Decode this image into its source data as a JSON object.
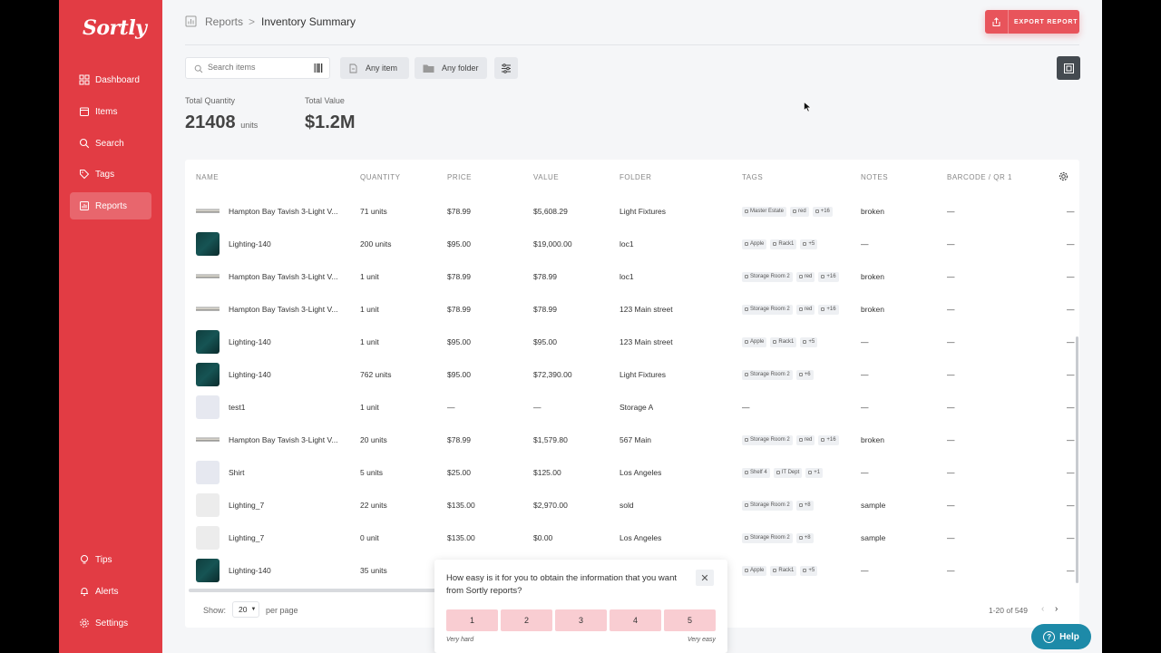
{
  "sidebar": {
    "logo": "Sortly",
    "items": [
      {
        "label": "Dashboard",
        "icon": "grid-icon"
      },
      {
        "label": "Items",
        "icon": "box-icon"
      },
      {
        "label": "Search",
        "icon": "search-icon"
      },
      {
        "label": "Tags",
        "icon": "tag-icon"
      },
      {
        "label": "Reports",
        "icon": "report-icon",
        "active": true
      }
    ],
    "bottom_items": [
      {
        "label": "Tips",
        "icon": "lightbulb-icon"
      },
      {
        "label": "Alerts",
        "icon": "bell-icon"
      },
      {
        "label": "Settings",
        "icon": "gear-icon"
      }
    ],
    "accent_color": "#e23c44"
  },
  "header": {
    "breadcrumb_root": "Reports",
    "breadcrumb_separator": ">",
    "title": "Inventory Summary",
    "export_label": "EXPORT REPORT"
  },
  "filters": {
    "search_placeholder": "Search items",
    "item_filter": "Any item",
    "folder_filter": "Any folder"
  },
  "stats": {
    "total_quantity_label": "Total Quantity",
    "total_quantity_value": "21408",
    "total_quantity_unit": "units",
    "total_value_label": "Total Value",
    "total_value_value": "$1.2M"
  },
  "table": {
    "columns": [
      "Name",
      "Quantity",
      "Price",
      "Value",
      "Folder",
      "Tags",
      "Notes",
      "Barcode / QR 1"
    ],
    "rows": [
      {
        "thumb": "fixture",
        "name": "Hampton Bay Tavish 3-Light V...",
        "quantity": "71 units",
        "price": "$78.99",
        "value": "$5,608.29",
        "folder": "Light Fixtures",
        "tags": [
          "Master Estate",
          "red",
          "+16"
        ],
        "notes": "broken",
        "barcode": "—",
        "extra": "—"
      },
      {
        "thumb": "lighting140",
        "name": "Lighting-140",
        "quantity": "200 units",
        "price": "$95.00",
        "value": "$19,000.00",
        "folder": "loc1",
        "tags": [
          "Apple",
          "Rack1",
          "+5"
        ],
        "notes": "—",
        "barcode": "—",
        "extra": "—"
      },
      {
        "thumb": "fixture",
        "name": "Hampton Bay Tavish 3-Light V...",
        "quantity": "1 unit",
        "price": "$78.99",
        "value": "$78.99",
        "folder": "loc1",
        "tags": [
          "Storage Room 2",
          "red",
          "+16"
        ],
        "notes": "broken",
        "barcode": "—",
        "extra": "—"
      },
      {
        "thumb": "fixture",
        "name": "Hampton Bay Tavish 3-Light V...",
        "quantity": "1 unit",
        "price": "$78.99",
        "value": "$78.99",
        "folder": "123 Main street",
        "tags": [
          "Storage Room 2",
          "red",
          "+16"
        ],
        "notes": "broken",
        "barcode": "—",
        "extra": "—"
      },
      {
        "thumb": "lighting140",
        "name": "Lighting-140",
        "quantity": "1 unit",
        "price": "$95.00",
        "value": "$95.00",
        "folder": "123 Main street",
        "tags": [
          "Apple",
          "Rack1",
          "+5"
        ],
        "notes": "—",
        "barcode": "—",
        "extra": "—"
      },
      {
        "thumb": "lighting140",
        "name": "Lighting-140",
        "quantity": "762 units",
        "price": "$95.00",
        "value": "$72,390.00",
        "folder": "Light Fixtures",
        "tags": [
          "Storage Room 2",
          "+6"
        ],
        "notes": "—",
        "barcode": "—",
        "extra": "—"
      },
      {
        "thumb": "file",
        "name": "test1",
        "quantity": "1 unit",
        "price": "—",
        "value": "—",
        "folder": "Storage A",
        "tags": [],
        "tags_empty": "—",
        "notes": "—",
        "barcode": "—",
        "extra": "—"
      },
      {
        "thumb": "fixture",
        "name": "Hampton Bay Tavish 3-Light V...",
        "quantity": "20 units",
        "price": "$78.99",
        "value": "$1,579.80",
        "folder": "567 Main",
        "tags": [
          "Storage Room 2",
          "red",
          "+16"
        ],
        "notes": "broken",
        "barcode": "—",
        "extra": "—"
      },
      {
        "thumb": "file",
        "name": "Shirt",
        "quantity": "5 units",
        "price": "$25.00",
        "value": "$125.00",
        "folder": "Los Angeles",
        "tags": [
          "Shelf 4",
          "IT Dept",
          "+1"
        ],
        "notes": "—",
        "barcode": "—",
        "extra": "—"
      },
      {
        "thumb": "lamp",
        "name": "Lighting_7",
        "quantity": "22 units",
        "price": "$135.00",
        "value": "$2,970.00",
        "folder": "sold",
        "tags": [
          "Storage Room 2",
          "+8"
        ],
        "notes": "sample",
        "barcode": "—",
        "extra": "—"
      },
      {
        "thumb": "lamp",
        "name": "Lighting_7",
        "quantity": "0 unit",
        "price": "$135.00",
        "value": "$0.00",
        "folder": "Los Angeles",
        "tags": [
          "Storage Room 2",
          "+8"
        ],
        "notes": "sample",
        "barcode": "—",
        "extra": "—"
      },
      {
        "thumb": "lighting140",
        "name": "Lighting-140",
        "quantity": "35 units",
        "price": "",
        "value": "",
        "folder": "",
        "tags": [
          "Apple",
          "Rack1",
          "+5"
        ],
        "notes": "—",
        "barcode": "—",
        "extra": "—"
      }
    ],
    "footer": {
      "show_label": "Show:",
      "per_page_value": "20",
      "per_page_label": "per page",
      "pagination": "1-20 of 549",
      "prev": "‹",
      "next": "›"
    }
  },
  "survey": {
    "question": "How easy is it for you to obtain the information that you want from Sortly reports?",
    "close": "✕",
    "options": [
      "1",
      "2",
      "3",
      "4",
      "5"
    ],
    "low_label": "Very hard",
    "high_label": "Very easy"
  },
  "help": {
    "label": "Help",
    "icon_glyph": "?"
  }
}
